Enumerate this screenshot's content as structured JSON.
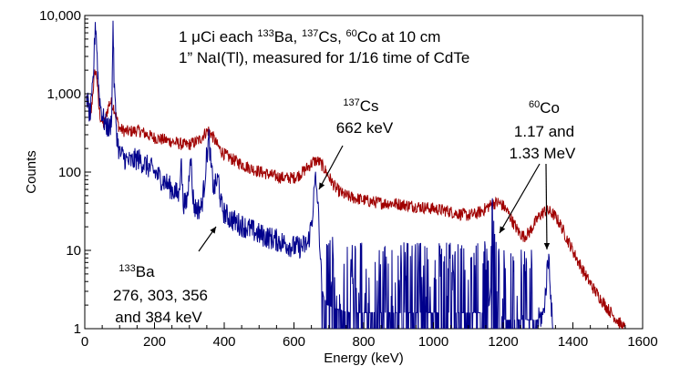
{
  "chart_data": {
    "type": "line",
    "title": "",
    "xlabel": "Energy (keV)",
    "ylabel": "Counts",
    "xlim": [
      0,
      1600
    ],
    "ylim": [
      1,
      10000
    ],
    "yscale": "log",
    "grid": false,
    "x_ticks": [
      {
        "value": 0,
        "label": "0"
      },
      {
        "value": 200,
        "label": "200"
      },
      {
        "value": 400,
        "label": "400"
      },
      {
        "value": 600,
        "label": "600"
      },
      {
        "value": 800,
        "label": "800"
      },
      {
        "value": 1000,
        "label": "1000"
      },
      {
        "value": 1200,
        "label": "1200"
      },
      {
        "value": 1400,
        "label": "1400"
      },
      {
        "value": 1600,
        "label": "1600"
      }
    ],
    "y_ticks": [
      {
        "value": 1,
        "label": "1"
      },
      {
        "value": 10,
        "label": "10"
      },
      {
        "value": 100,
        "label": "100"
      },
      {
        "value": 1000,
        "label": "1,000"
      },
      {
        "value": 10000,
        "label": "10,000"
      }
    ],
    "colors": {
      "red": "#a00000",
      "blue": "#00008c"
    },
    "series": [
      {
        "color": "#a00000",
        "points": [
          [
            5,
            900
          ],
          [
            10,
            780
          ],
          [
            15,
            420
          ],
          [
            20,
            700
          ],
          [
            25,
            1300
          ],
          [
            30,
            2000
          ],
          [
            35,
            1600
          ],
          [
            40,
            700
          ],
          [
            45,
            500
          ],
          [
            50,
            430
          ],
          [
            55,
            400
          ],
          [
            60,
            480
          ],
          [
            65,
            620
          ],
          [
            70,
            750
          ],
          [
            75,
            780
          ],
          [
            80,
            720
          ],
          [
            85,
            640
          ],
          [
            90,
            520
          ],
          [
            95,
            420
          ],
          [
            100,
            360
          ],
          [
            110,
            340
          ],
          [
            120,
            330
          ],
          [
            130,
            330
          ],
          [
            140,
            335
          ],
          [
            150,
            340
          ],
          [
            160,
            330
          ],
          [
            170,
            315
          ],
          [
            180,
            300
          ],
          [
            190,
            285
          ],
          [
            200,
            275
          ],
          [
            210,
            268
          ],
          [
            220,
            262
          ],
          [
            230,
            258
          ],
          [
            240,
            250
          ],
          [
            250,
            245
          ],
          [
            260,
            238
          ],
          [
            270,
            232
          ],
          [
            280,
            225
          ],
          [
            290,
            222
          ],
          [
            300,
            225
          ],
          [
            310,
            235
          ],
          [
            320,
            245
          ],
          [
            330,
            260
          ],
          [
            340,
            295
          ],
          [
            350,
            330
          ],
          [
            355,
            340
          ],
          [
            360,
            320
          ],
          [
            370,
            270
          ],
          [
            380,
            220
          ],
          [
            390,
            190
          ],
          [
            400,
            170
          ],
          [
            420,
            148
          ],
          [
            440,
            133
          ],
          [
            460,
            120
          ],
          [
            480,
            110
          ],
          [
            500,
            102
          ],
          [
            520,
            96
          ],
          [
            540,
            90
          ],
          [
            560,
            86
          ],
          [
            580,
            84
          ],
          [
            600,
            85
          ],
          [
            615,
            92
          ],
          [
            630,
            105
          ],
          [
            645,
            122
          ],
          [
            655,
            135
          ],
          [
            665,
            140
          ],
          [
            675,
            132
          ],
          [
            690,
            105
          ],
          [
            705,
            80
          ],
          [
            720,
            62
          ],
          [
            740,
            52
          ],
          [
            760,
            48
          ],
          [
            780,
            46
          ],
          [
            800,
            44
          ],
          [
            820,
            42
          ],
          [
            840,
            41
          ],
          [
            860,
            40
          ],
          [
            880,
            40
          ],
          [
            900,
            39
          ],
          [
            920,
            38
          ],
          [
            940,
            37
          ],
          [
            960,
            36
          ],
          [
            980,
            35
          ],
          [
            1000,
            34
          ],
          [
            1020,
            33
          ],
          [
            1040,
            32
          ],
          [
            1060,
            30
          ],
          [
            1080,
            29
          ],
          [
            1100,
            28
          ],
          [
            1120,
            29
          ],
          [
            1140,
            32
          ],
          [
            1160,
            37
          ],
          [
            1175,
            40
          ],
          [
            1185,
            41
          ],
          [
            1200,
            37
          ],
          [
            1215,
            30
          ],
          [
            1230,
            22
          ],
          [
            1245,
            17
          ],
          [
            1260,
            15
          ],
          [
            1275,
            17
          ],
          [
            1290,
            22
          ],
          [
            1305,
            28
          ],
          [
            1320,
            32
          ],
          [
            1335,
            31
          ],
          [
            1350,
            27
          ],
          [
            1365,
            21
          ],
          [
            1380,
            15
          ],
          [
            1395,
            11
          ],
          [
            1410,
            8
          ],
          [
            1425,
            6
          ],
          [
            1440,
            4.5
          ],
          [
            1460,
            3.2
          ],
          [
            1480,
            2.4
          ],
          [
            1500,
            1.8
          ],
          [
            1520,
            1.4
          ],
          [
            1540,
            1.1
          ],
          [
            1550,
            1.0
          ]
        ]
      },
      {
        "color": "#00008c",
        "points": [
          [
            5,
            1000
          ],
          [
            10,
            700
          ],
          [
            15,
            500
          ],
          [
            20,
            800
          ],
          [
            25,
            1800
          ],
          [
            30,
            8000
          ],
          [
            33,
            6000
          ],
          [
            37,
            2000
          ],
          [
            40,
            1200
          ],
          [
            45,
            700
          ],
          [
            50,
            550
          ],
          [
            55,
            450
          ],
          [
            60,
            400
          ],
          [
            65,
            380
          ],
          [
            70,
            350
          ],
          [
            75,
            420
          ],
          [
            78,
            700
          ],
          [
            81,
            9000
          ],
          [
            84,
            1500
          ],
          [
            88,
            600
          ],
          [
            92,
            300
          ],
          [
            96,
            220
          ],
          [
            100,
            170
          ],
          [
            110,
            160
          ],
          [
            120,
            140
          ],
          [
            130,
            135
          ],
          [
            140,
            140
          ],
          [
            150,
            150
          ],
          [
            160,
            140
          ],
          [
            170,
            128
          ],
          [
            180,
            118
          ],
          [
            190,
            110
          ],
          [
            200,
            100
          ],
          [
            210,
            90
          ],
          [
            220,
            82
          ],
          [
            230,
            75
          ],
          [
            240,
            68
          ],
          [
            250,
            60
          ],
          [
            260,
            55
          ],
          [
            270,
            50
          ],
          [
            276,
            150
          ],
          [
            282,
            42
          ],
          [
            290,
            38
          ],
          [
            297,
            60
          ],
          [
            303,
            200
          ],
          [
            309,
            55
          ],
          [
            315,
            35
          ],
          [
            325,
            34
          ],
          [
            335,
            36
          ],
          [
            343,
            70
          ],
          [
            349,
            150
          ],
          [
            356,
            270
          ],
          [
            362,
            120
          ],
          [
            370,
            60
          ],
          [
            378,
            75
          ],
          [
            384,
            80
          ],
          [
            390,
            40
          ],
          [
            400,
            30
          ],
          [
            420,
            25
          ],
          [
            440,
            22
          ],
          [
            460,
            20
          ],
          [
            480,
            18
          ],
          [
            500,
            16
          ],
          [
            520,
            15
          ],
          [
            540,
            14
          ],
          [
            560,
            13
          ],
          [
            580,
            12
          ],
          [
            600,
            11
          ],
          [
            620,
            11
          ],
          [
            640,
            12
          ],
          [
            652,
            25
          ],
          [
            657,
            50
          ],
          [
            662,
            80
          ],
          [
            667,
            50
          ],
          [
            672,
            20
          ],
          [
            677,
            6
          ],
          [
            682,
            3
          ],
          [
            690,
            2
          ],
          [
            700,
            2
          ],
          [
            720,
            1.8
          ],
          [
            740,
            1.7
          ],
          [
            760,
            1.6
          ],
          [
            780,
            1.6
          ],
          [
            800,
            1.6
          ],
          [
            820,
            1.6
          ],
          [
            840,
            1.6
          ],
          [
            860,
            1.6
          ],
          [
            880,
            1.6
          ],
          [
            900,
            1.6
          ],
          [
            920,
            1.6
          ],
          [
            940,
            1.6
          ],
          [
            960,
            1.6
          ],
          [
            980,
            1.6
          ],
          [
            1000,
            1.6
          ],
          [
            1020,
            1.6
          ],
          [
            1040,
            1.6
          ],
          [
            1060,
            1.6
          ],
          [
            1080,
            1.6
          ],
          [
            1100,
            1.6
          ],
          [
            1120,
            1.6
          ],
          [
            1140,
            1.6
          ],
          [
            1160,
            2
          ],
          [
            1168,
            5
          ],
          [
            1173,
            12
          ],
          [
            1177,
            8
          ],
          [
            1182,
            3
          ],
          [
            1190,
            1.5
          ],
          [
            1200,
            1.3
          ],
          [
            1220,
            1.3
          ],
          [
            1240,
            1.3
          ],
          [
            1260,
            1.3
          ],
          [
            1280,
            1.3
          ],
          [
            1300,
            1.3
          ],
          [
            1315,
            1.5
          ],
          [
            1322,
            3
          ],
          [
            1328,
            7
          ],
          [
            1332,
            8
          ],
          [
            1336,
            3
          ],
          [
            1342,
            1
          ]
        ]
      }
    ],
    "annotations": [
      {
        "name": "annotation-title-line-1",
        "parts": [
          {
            "text": "1 μCi each "
          },
          {
            "text": "133",
            "sup": true
          },
          {
            "text": "Ba, "
          },
          {
            "text": "137",
            "sup": true
          },
          {
            "text": "Cs, "
          },
          {
            "text": "60",
            "sup": true
          },
          {
            "text": "Co at 10 cm"
          }
        ]
      },
      {
        "name": "annotation-title-line-2",
        "parts": [
          {
            "text": "1” NaI(Tl), measured for 1/16 time of CdTe"
          }
        ]
      },
      {
        "name": "annotation-cs-isotope",
        "parts": [
          {
            "text": "137",
            "sup": true
          },
          {
            "text": "Cs"
          }
        ]
      },
      {
        "name": "annotation-cs-energy",
        "parts": [
          {
            "text": "662 keV"
          }
        ]
      },
      {
        "name": "annotation-co-isotope",
        "parts": [
          {
            "text": "60",
            "sup": true
          },
          {
            "text": "Co"
          }
        ]
      },
      {
        "name": "annotation-co-energy-1",
        "parts": [
          {
            "text": "1.17 and"
          }
        ]
      },
      {
        "name": "annotation-co-energy-2",
        "parts": [
          {
            "text": "1.33 MeV"
          }
        ]
      },
      {
        "name": "annotation-ba-isotope",
        "parts": [
          {
            "text": "133",
            "sup": true
          },
          {
            "text": "Ba"
          }
        ]
      },
      {
        "name": "annotation-ba-energy-1",
        "parts": [
          {
            "text": "276, 303, 356"
          }
        ]
      },
      {
        "name": "annotation-ba-energy-2",
        "parts": [
          {
            "text": "and 384 keV"
          }
        ]
      }
    ]
  }
}
